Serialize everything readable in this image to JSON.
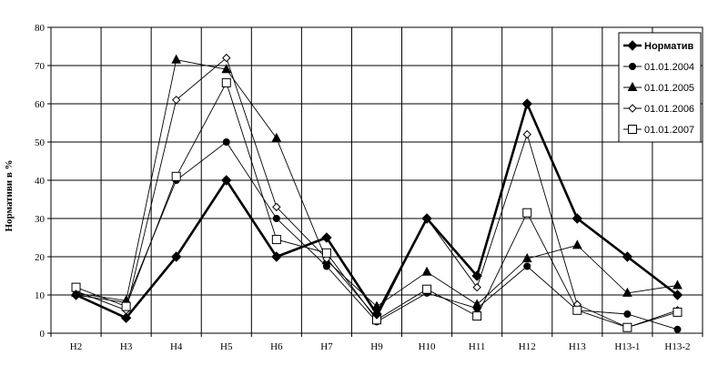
{
  "chart_data": {
    "type": "line",
    "title": "",
    "xlabel": "",
    "ylabel": "Нормативи в %",
    "ylim": [
      0,
      80
    ],
    "yticks": [
      0,
      10,
      20,
      30,
      40,
      50,
      60,
      70,
      80
    ],
    "grid": true,
    "legend_position": "top-right",
    "categories": [
      "Н2",
      "Н3",
      "Н4",
      "Н5",
      "Н6",
      "Н7",
      "Н9",
      "Н10",
      "Н11",
      "Н12",
      "Н13",
      "Н13-1",
      "Н13-2"
    ],
    "series": [
      {
        "name": "Норматив",
        "marker": "diamond-filled",
        "bold": true,
        "values": [
          10,
          4,
          20,
          40,
          20,
          25,
          5,
          30,
          15,
          60,
          30,
          20,
          10
        ]
      },
      {
        "name": "01.01.2004",
        "marker": "circle-filled",
        "bold": false,
        "values": [
          10,
          8,
          40,
          50,
          30,
          17.5,
          3,
          10.5,
          6.5,
          17.5,
          6,
          5,
          1
        ]
      },
      {
        "name": "01.01.2005",
        "marker": "triangle-filled",
        "bold": false,
        "values": [
          10.5,
          8.5,
          71.5,
          69,
          51,
          19,
          7,
          16,
          7.5,
          19.5,
          23,
          10.5,
          12.5
        ]
      },
      {
        "name": "01.01.2006",
        "marker": "diamond-open",
        "bold": false,
        "values": [
          11,
          6,
          61,
          72,
          33,
          19.5,
          4,
          30,
          12,
          52,
          7.5,
          1.5,
          6
        ]
      },
      {
        "name": "01.01.2007",
        "marker": "square-open",
        "bold": false,
        "values": [
          12,
          7,
          41,
          65.5,
          24.5,
          21,
          3.5,
          11.5,
          4.5,
          31.5,
          6,
          1.5,
          5.5
        ]
      }
    ]
  }
}
